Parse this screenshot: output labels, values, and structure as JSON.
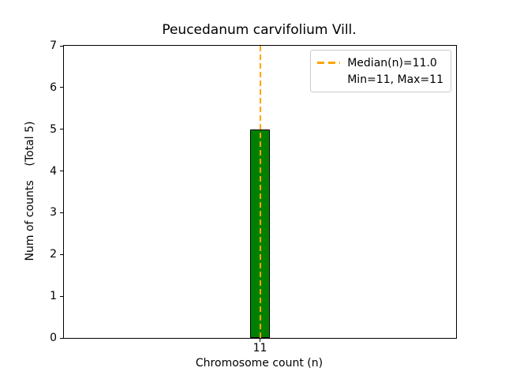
{
  "chart_data": {
    "type": "bar",
    "title": "Peucedanum carvifolium Vill.",
    "xlabel": "Chromosome count (n)",
    "ylabel": "Num of counts    (Total 5)",
    "categories": [
      "11"
    ],
    "x": [
      11
    ],
    "values": [
      5
    ],
    "bar_width": 0.8,
    "xlim": [
      3,
      19
    ],
    "ylim": [
      0,
      7
    ],
    "xticks": [
      11
    ],
    "yticks": [
      0,
      1,
      2,
      3,
      4,
      5,
      6,
      7
    ],
    "grid": false,
    "bar_color": "#008000",
    "bar_edge_color": "#000000",
    "median_line": {
      "x": 11,
      "color": "#FFA500",
      "style": "dashed"
    },
    "legend": {
      "position": "upper-right",
      "entries": [
        {
          "marker": "orange-dashed-line",
          "label": "Median(n)=11.0"
        },
        {
          "marker": "none",
          "label": "Min=11, Max=11"
        }
      ]
    },
    "stats": {
      "total": 5,
      "median": 11.0,
      "min": 11,
      "max": 11
    }
  }
}
